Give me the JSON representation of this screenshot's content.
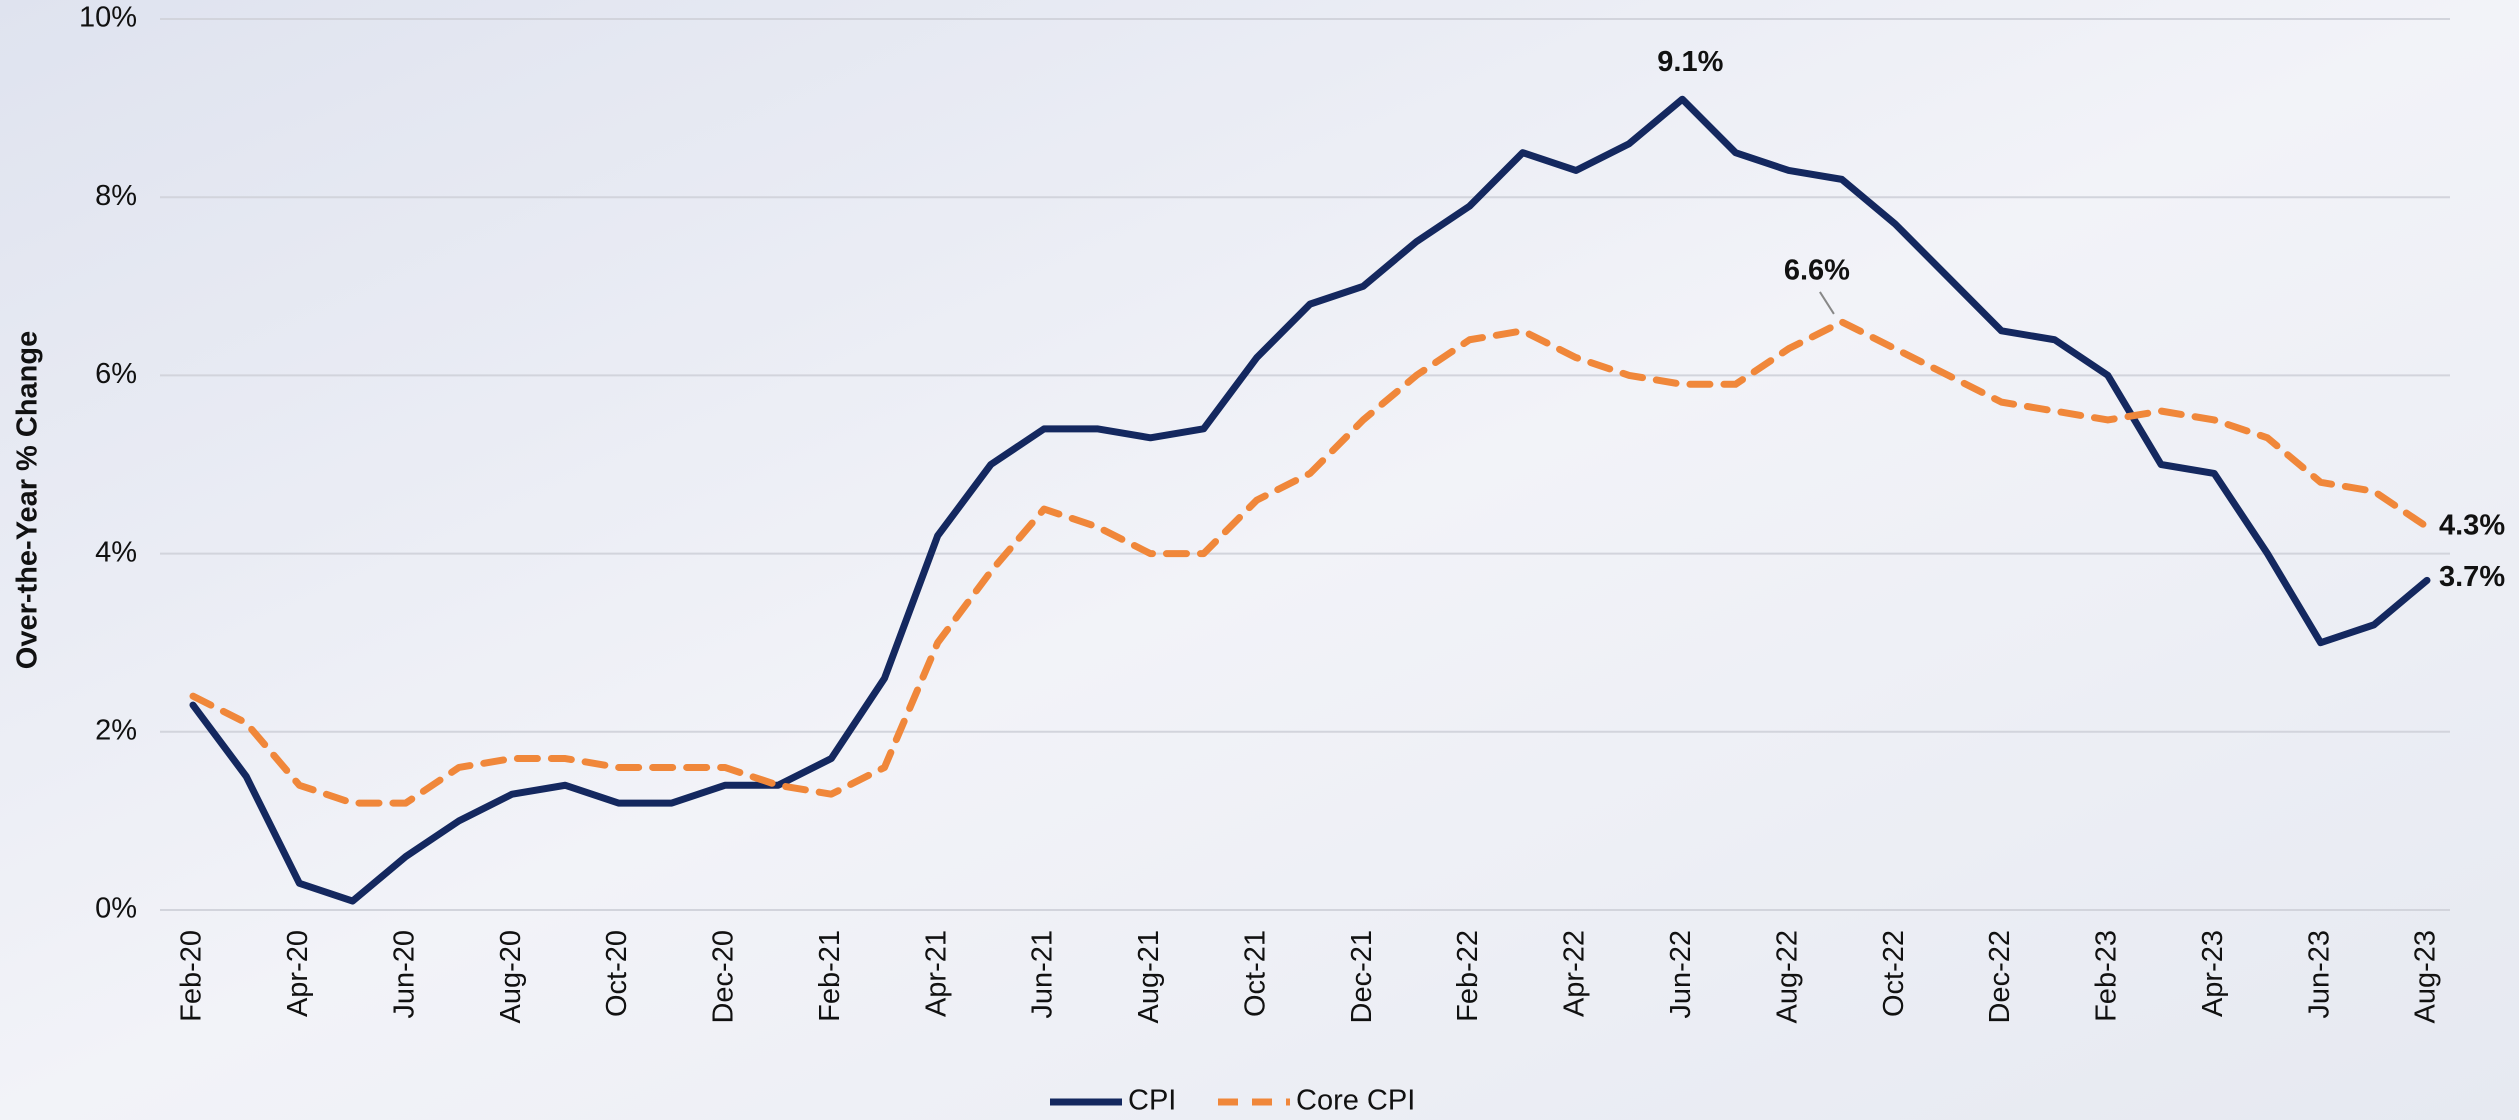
{
  "chart_data": {
    "type": "line",
    "y_label": "Over-the-Year % Change",
    "categories": [
      "Feb-20",
      null,
      "Apr-20",
      null,
      "Jun-20",
      null,
      "Aug-20",
      null,
      "Oct-20",
      null,
      "Dec-20",
      null,
      "Feb-21",
      null,
      "Apr-21",
      null,
      "Jun-21",
      null,
      "Aug-21",
      null,
      "Oct-21",
      null,
      "Dec-21",
      null,
      "Feb-22",
      null,
      "Apr-22",
      null,
      "Jun-22",
      null,
      "Aug-22",
      null,
      "Oct-22",
      null,
      "Dec-22",
      null,
      "Feb-23",
      null,
      "Apr-23",
      null,
      "Jun-23",
      null,
      "Aug-23"
    ],
    "series": [
      {
        "name": "CPI",
        "color": "#14285f",
        "dashed": false,
        "values": [
          2.3,
          1.5,
          0.3,
          0.1,
          0.6,
          1.0,
          1.3,
          1.4,
          1.2,
          1.2,
          1.4,
          1.4,
          1.7,
          2.6,
          4.2,
          5.0,
          5.4,
          5.4,
          5.3,
          5.4,
          6.2,
          6.8,
          7.0,
          7.5,
          7.9,
          8.5,
          8.3,
          8.6,
          9.1,
          8.5,
          8.3,
          8.2,
          7.7,
          7.1,
          6.5,
          6.4,
          6.0,
          5.0,
          4.9,
          4.0,
          3.0,
          3.2,
          3.7
        ],
        "value_labels": [
          null,
          null,
          null,
          null,
          null,
          null,
          null,
          null,
          null,
          null,
          null,
          null,
          null,
          null,
          null,
          null,
          null,
          null,
          null,
          null,
          null,
          null,
          null,
          null,
          null,
          null,
          null,
          null,
          "9.1%",
          null,
          null,
          null,
          null,
          null,
          null,
          null,
          null,
          null,
          null,
          null,
          null,
          null,
          "3.7%"
        ]
      },
      {
        "name": "Core CPI",
        "color": "#f0873a",
        "dashed": true,
        "values": [
          2.4,
          2.1,
          1.4,
          1.2,
          1.2,
          1.6,
          1.7,
          1.7,
          1.6,
          1.6,
          1.6,
          1.4,
          1.3,
          1.6,
          3.0,
          3.8,
          4.5,
          4.3,
          4.0,
          4.0,
          4.6,
          4.9,
          5.5,
          6.0,
          6.4,
          6.5,
          6.2,
          6.0,
          5.9,
          5.9,
          6.3,
          6.6,
          6.3,
          6.0,
          5.7,
          5.6,
          5.5,
          5.6,
          5.5,
          5.3,
          4.8,
          4.7,
          4.3
        ],
        "value_labels": [
          null,
          null,
          null,
          null,
          null,
          null,
          null,
          null,
          null,
          null,
          null,
          null,
          null,
          null,
          null,
          null,
          null,
          null,
          null,
          null,
          null,
          null,
          null,
          null,
          null,
          null,
          null,
          null,
          null,
          null,
          null,
          "6.6%",
          null,
          null,
          null,
          null,
          null,
          null,
          null,
          null,
          null,
          null,
          "4.3%"
        ]
      }
    ],
    "ylim": [
      0,
      10
    ],
    "yticks": [
      {
        "value": 0,
        "label": "0%"
      },
      {
        "value": 2,
        "label": "2%"
      },
      {
        "value": 4,
        "label": "4%"
      },
      {
        "value": 6,
        "label": "6%"
      },
      {
        "value": 8,
        "label": "8%"
      },
      {
        "value": 10,
        "label": "10%"
      }
    ],
    "grid": true
  }
}
